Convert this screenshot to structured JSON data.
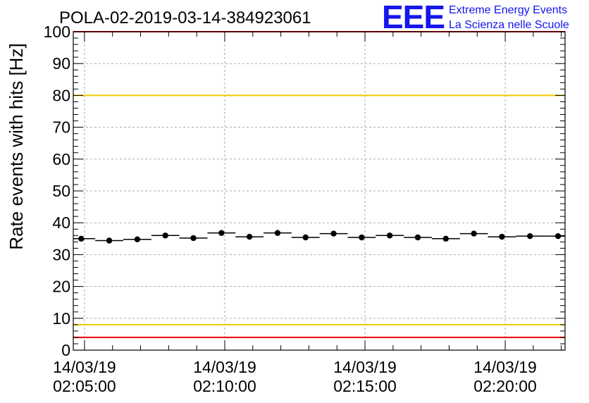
{
  "chart_data": {
    "type": "scatter",
    "title": "POLA-02-2019-03-14-384923061",
    "ylabel": "Rate events with hits [Hz]",
    "xlabel": "",
    "x_axis_kind": "time",
    "x_range": [
      "2019-03-14 02:04:36",
      "2019-03-14 02:22:08"
    ],
    "ylim": [
      0,
      100
    ],
    "grid": true,
    "y_ticks": [
      0,
      10,
      20,
      30,
      40,
      50,
      60,
      70,
      80,
      90,
      100
    ],
    "x_ticks": [
      {
        "time": "2019-03-14 02:05:00",
        "date_label": "14/03/19",
        "time_label": "02:05:00"
      },
      {
        "time": "2019-03-14 02:10:00",
        "date_label": "14/03/19",
        "time_label": "02:10:00"
      },
      {
        "time": "2019-03-14 02:15:00",
        "date_label": "14/03/19",
        "time_label": "02:15:00"
      },
      {
        "time": "2019-03-14 02:20:00",
        "date_label": "14/03/19",
        "time_label": "02:20:00"
      }
    ],
    "series": [
      {
        "marker": "circle",
        "bin_width_seconds": 60,
        "points": [
          {
            "time": "2019-03-14 02:04:53",
            "value": 35.0
          },
          {
            "time": "2019-03-14 02:05:53",
            "value": 34.4
          },
          {
            "time": "2019-03-14 02:06:53",
            "value": 34.8
          },
          {
            "time": "2019-03-14 02:07:53",
            "value": 36.0
          },
          {
            "time": "2019-03-14 02:08:53",
            "value": 35.2
          },
          {
            "time": "2019-03-14 02:09:53",
            "value": 36.8
          },
          {
            "time": "2019-03-14 02:10:53",
            "value": 35.6
          },
          {
            "time": "2019-03-14 02:11:53",
            "value": 36.8
          },
          {
            "time": "2019-03-14 02:12:53",
            "value": 35.4
          },
          {
            "time": "2019-03-14 02:13:53",
            "value": 36.6
          },
          {
            "time": "2019-03-14 02:14:53",
            "value": 35.4
          },
          {
            "time": "2019-03-14 02:15:53",
            "value": 36.0
          },
          {
            "time": "2019-03-14 02:16:53",
            "value": 35.4
          },
          {
            "time": "2019-03-14 02:17:53",
            "value": 35.0
          },
          {
            "time": "2019-03-14 02:18:53",
            "value": 36.6
          },
          {
            "time": "2019-03-14 02:19:53",
            "value": 35.6
          },
          {
            "time": "2019-03-14 02:20:53",
            "value": 35.8
          },
          {
            "time": "2019-03-14 02:21:53",
            "value": 35.8
          }
        ]
      }
    ],
    "reference_lines": [
      {
        "value": 100,
        "color": "#ee0000"
      },
      {
        "value": 80,
        "color": "#f0c800"
      },
      {
        "value": 8,
        "color": "#f0c800"
      },
      {
        "value": 4,
        "color": "#ee0000"
      }
    ]
  },
  "logo": {
    "letters": "EEE",
    "line1": "Extreme Energy Events",
    "line2": "La Scienza nelle Scuole",
    "color": "#1515ee"
  }
}
